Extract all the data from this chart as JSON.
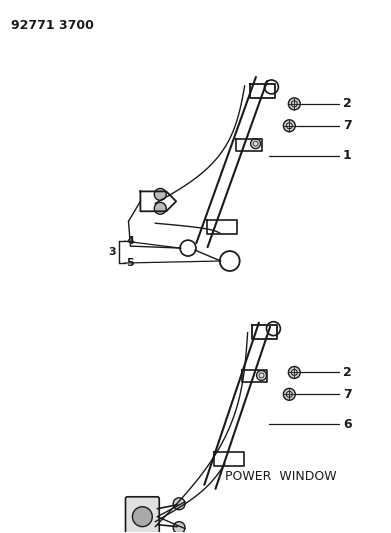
{
  "title_code": "92771 3700",
  "background_color": "#ffffff",
  "line_color": "#1a1a1a",
  "text_color": "#1a1a1a",
  "diagram_title": "POWER  WINDOW"
}
